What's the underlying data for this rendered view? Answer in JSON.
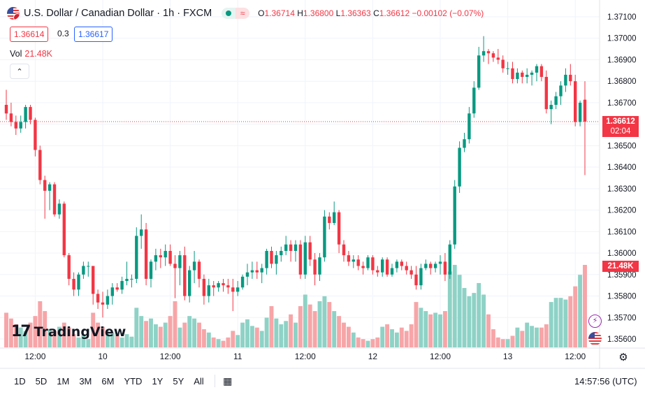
{
  "header": {
    "title": "U.S. Dollar / Canadian Dollar · 1h · FXCM",
    "ohlc": {
      "o_label": "O",
      "o": "1.36714",
      "h_label": "H",
      "h": "1.36800",
      "l_label": "L",
      "l": "1.36363",
      "c_label": "C",
      "c": "1.36612",
      "change": "−0.00102 (−0.07%)"
    },
    "bid": "1.36614",
    "spread": "0.3",
    "ask": "1.36617",
    "vol_label": "Vol",
    "vol_value": "21.48K",
    "collapse_icon": "chevron-up-icon"
  },
  "logo": {
    "mark": "17",
    "name": "TradingView"
  },
  "price_axis": {
    "current_price": "1.36612",
    "countdown": "02:04",
    "current_volume": "21.48K"
  },
  "toolbar": {
    "ranges": [
      "1D",
      "5D",
      "1M",
      "3M",
      "6M",
      "YTD",
      "1Y",
      "5Y",
      "All"
    ],
    "clock": "14:57:56 (UTC)",
    "calendar_icon": "calendar-range-icon",
    "settings_icon": "gear-icon"
  },
  "colors": {
    "up": "#089981",
    "down": "#f23645",
    "vol_up": "#8ed2c6",
    "vol_down": "#f7a5a8",
    "current_line": "#f23645"
  },
  "chart_data": {
    "type": "candlestick",
    "y_ticks": [
      "1.37100",
      "1.37000",
      "1.36900",
      "1.36800",
      "1.36700",
      "1.36600",
      "1.36500",
      "1.36400",
      "1.36300",
      "1.36200",
      "1.36100",
      "1.36000",
      "1.35900",
      "1.35800",
      "1.35700",
      "1.35600"
    ],
    "ylim": [
      1.3556,
      1.3714
    ],
    "x_ticks": [
      {
        "label": "12:00",
        "bar": 6
      },
      {
        "label": "10",
        "bar": 20
      },
      {
        "label": "12:00",
        "bar": 34
      },
      {
        "label": "11",
        "bar": 48
      },
      {
        "label": "12:00",
        "bar": 62
      },
      {
        "label": "12",
        "bar": 76
      },
      {
        "label": "12:00",
        "bar": 90
      },
      {
        "label": "13",
        "bar": 104
      },
      {
        "label": "12:00",
        "bar": 118
      }
    ],
    "bars": [
      {
        "o": 1.3669,
        "h": 1.3676,
        "l": 1.3662,
        "c": 1.3665,
        "v": 0.42
      },
      {
        "o": 1.3665,
        "h": 1.367,
        "l": 1.3659,
        "c": 1.3661,
        "v": 0.35
      },
      {
        "o": 1.3661,
        "h": 1.3664,
        "l": 1.3655,
        "c": 1.3658,
        "v": 0.28
      },
      {
        "o": 1.3658,
        "h": 1.3664,
        "l": 1.3656,
        "c": 1.3661,
        "v": 0.24
      },
      {
        "o": 1.3661,
        "h": 1.3669,
        "l": 1.3658,
        "c": 1.3668,
        "v": 0.2
      },
      {
        "o": 1.3668,
        "h": 1.3669,
        "l": 1.366,
        "c": 1.3662,
        "v": 0.3
      },
      {
        "o": 1.3662,
        "h": 1.3663,
        "l": 1.3645,
        "c": 1.3648,
        "v": 0.38
      },
      {
        "o": 1.3648,
        "h": 1.365,
        "l": 1.3632,
        "c": 1.3634,
        "v": 0.56
      },
      {
        "o": 1.3634,
        "h": 1.3636,
        "l": 1.3616,
        "c": 1.3629,
        "v": 0.44
      },
      {
        "o": 1.3629,
        "h": 1.3633,
        "l": 1.362,
        "c": 1.3632,
        "v": 0.22
      },
      {
        "o": 1.3632,
        "h": 1.3633,
        "l": 1.3617,
        "c": 1.3618,
        "v": 0.2
      },
      {
        "o": 1.3618,
        "h": 1.3625,
        "l": 1.3616,
        "c": 1.3623,
        "v": 0.25
      },
      {
        "o": 1.3623,
        "h": 1.3624,
        "l": 1.3598,
        "c": 1.3599,
        "v": 0.3
      },
      {
        "o": 1.3599,
        "h": 1.36,
        "l": 1.3585,
        "c": 1.3588,
        "v": 0.24
      },
      {
        "o": 1.3588,
        "h": 1.3591,
        "l": 1.358,
        "c": 1.3583,
        "v": 0.16
      },
      {
        "o": 1.3583,
        "h": 1.3591,
        "l": 1.358,
        "c": 1.359,
        "v": 0.12
      },
      {
        "o": 1.359,
        "h": 1.3596,
        "l": 1.3588,
        "c": 1.3594,
        "v": 0.15
      },
      {
        "o": 1.3594,
        "h": 1.3596,
        "l": 1.3589,
        "c": 1.3594,
        "v": 0.1
      },
      {
        "o": 1.3594,
        "h": 1.3594,
        "l": 1.3576,
        "c": 1.3581,
        "v": 0.42
      },
      {
        "o": 1.3581,
        "h": 1.3583,
        "l": 1.3574,
        "c": 1.3577,
        "v": 0.3
      },
      {
        "o": 1.3577,
        "h": 1.3582,
        "l": 1.357,
        "c": 1.3576,
        "v": 0.25
      },
      {
        "o": 1.3576,
        "h": 1.3583,
        "l": 1.3574,
        "c": 1.358,
        "v": 0.2
      },
      {
        "o": 1.358,
        "h": 1.3586,
        "l": 1.3576,
        "c": 1.3584,
        "v": 0.18
      },
      {
        "o": 1.3584,
        "h": 1.3586,
        "l": 1.3582,
        "c": 1.3583,
        "v": 0.15
      },
      {
        "o": 1.3583,
        "h": 1.3589,
        "l": 1.3581,
        "c": 1.3587,
        "v": 0.12
      },
      {
        "o": 1.3587,
        "h": 1.3596,
        "l": 1.3585,
        "c": 1.3588,
        "v": 0.16
      },
      {
        "o": 1.3588,
        "h": 1.359,
        "l": 1.3584,
        "c": 1.3588,
        "v": 0.13
      },
      {
        "o": 1.3588,
        "h": 1.3612,
        "l": 1.3586,
        "c": 1.3608,
        "v": 0.48
      },
      {
        "o": 1.3608,
        "h": 1.3618,
        "l": 1.3602,
        "c": 1.3611,
        "v": 0.38
      },
      {
        "o": 1.3611,
        "h": 1.3614,
        "l": 1.3585,
        "c": 1.3588,
        "v": 0.32
      },
      {
        "o": 1.3588,
        "h": 1.3597,
        "l": 1.3584,
        "c": 1.3596,
        "v": 0.35
      },
      {
        "o": 1.3596,
        "h": 1.3602,
        "l": 1.3592,
        "c": 1.3599,
        "v": 0.28
      },
      {
        "o": 1.3599,
        "h": 1.3602,
        "l": 1.3593,
        "c": 1.3598,
        "v": 0.25
      },
      {
        "o": 1.3598,
        "h": 1.3604,
        "l": 1.3594,
        "c": 1.3601,
        "v": 0.3
      },
      {
        "o": 1.3601,
        "h": 1.3604,
        "l": 1.3594,
        "c": 1.3595,
        "v": 0.38
      },
      {
        "o": 1.3595,
        "h": 1.3599,
        "l": 1.3579,
        "c": 1.3593,
        "v": 0.56
      },
      {
        "o": 1.3593,
        "h": 1.3601,
        "l": 1.3585,
        "c": 1.3599,
        "v": 0.24
      },
      {
        "o": 1.3599,
        "h": 1.3603,
        "l": 1.3578,
        "c": 1.358,
        "v": 0.3
      },
      {
        "o": 1.358,
        "h": 1.3594,
        "l": 1.3577,
        "c": 1.3592,
        "v": 0.38
      },
      {
        "o": 1.3592,
        "h": 1.3601,
        "l": 1.3586,
        "c": 1.3596,
        "v": 0.35
      },
      {
        "o": 1.3596,
        "h": 1.3597,
        "l": 1.3584,
        "c": 1.3588,
        "v": 0.3
      },
      {
        "o": 1.3588,
        "h": 1.359,
        "l": 1.3576,
        "c": 1.358,
        "v": 0.22
      },
      {
        "o": 1.358,
        "h": 1.3588,
        "l": 1.3577,
        "c": 1.3585,
        "v": 0.18
      },
      {
        "o": 1.3585,
        "h": 1.3587,
        "l": 1.358,
        "c": 1.3584,
        "v": 0.12
      },
      {
        "o": 1.3584,
        "h": 1.3587,
        "l": 1.3582,
        "c": 1.3586,
        "v": 0.1
      },
      {
        "o": 1.3586,
        "h": 1.3588,
        "l": 1.3582,
        "c": 1.3585,
        "v": 0.08
      },
      {
        "o": 1.3585,
        "h": 1.3588,
        "l": 1.3581,
        "c": 1.3584,
        "v": 0.12
      },
      {
        "o": 1.3584,
        "h": 1.3588,
        "l": 1.3573,
        "c": 1.3582,
        "v": 0.2
      },
      {
        "o": 1.3582,
        "h": 1.3587,
        "l": 1.358,
        "c": 1.3584,
        "v": 0.15
      },
      {
        "o": 1.3584,
        "h": 1.359,
        "l": 1.3583,
        "c": 1.3589,
        "v": 0.3
      },
      {
        "o": 1.3589,
        "h": 1.3595,
        "l": 1.3585,
        "c": 1.3591,
        "v": 0.34
      },
      {
        "o": 1.3591,
        "h": 1.3596,
        "l": 1.3588,
        "c": 1.3592,
        "v": 0.26
      },
      {
        "o": 1.3592,
        "h": 1.3596,
        "l": 1.3588,
        "c": 1.3591,
        "v": 0.24
      },
      {
        "o": 1.3591,
        "h": 1.3595,
        "l": 1.3586,
        "c": 1.3593,
        "v": 0.2
      },
      {
        "o": 1.3593,
        "h": 1.3602,
        "l": 1.359,
        "c": 1.3601,
        "v": 0.36
      },
      {
        "o": 1.3601,
        "h": 1.3603,
        "l": 1.3593,
        "c": 1.3595,
        "v": 0.5
      },
      {
        "o": 1.3595,
        "h": 1.3601,
        "l": 1.359,
        "c": 1.3599,
        "v": 0.35
      },
      {
        "o": 1.3599,
        "h": 1.3603,
        "l": 1.3596,
        "c": 1.3601,
        "v": 0.28
      },
      {
        "o": 1.3601,
        "h": 1.3608,
        "l": 1.3599,
        "c": 1.3604,
        "v": 0.32
      },
      {
        "o": 1.3604,
        "h": 1.3606,
        "l": 1.3596,
        "c": 1.3601,
        "v": 0.4
      },
      {
        "o": 1.3601,
        "h": 1.3606,
        "l": 1.3596,
        "c": 1.3604,
        "v": 0.3
      },
      {
        "o": 1.3604,
        "h": 1.3606,
        "l": 1.3588,
        "c": 1.359,
        "v": 0.5
      },
      {
        "o": 1.359,
        "h": 1.3608,
        "l": 1.3588,
        "c": 1.3605,
        "v": 0.64
      },
      {
        "o": 1.3605,
        "h": 1.3608,
        "l": 1.3594,
        "c": 1.3597,
        "v": 0.52
      },
      {
        "o": 1.3597,
        "h": 1.36,
        "l": 1.3585,
        "c": 1.359,
        "v": 0.44
      },
      {
        "o": 1.359,
        "h": 1.36,
        "l": 1.3587,
        "c": 1.3598,
        "v": 0.56
      },
      {
        "o": 1.3598,
        "h": 1.362,
        "l": 1.3596,
        "c": 1.3617,
        "v": 0.62
      },
      {
        "o": 1.3617,
        "h": 1.3619,
        "l": 1.3611,
        "c": 1.3614,
        "v": 0.55
      },
      {
        "o": 1.3614,
        "h": 1.3624,
        "l": 1.3613,
        "c": 1.3619,
        "v": 0.44
      },
      {
        "o": 1.3619,
        "h": 1.362,
        "l": 1.36,
        "c": 1.3604,
        "v": 0.38
      },
      {
        "o": 1.3604,
        "h": 1.3606,
        "l": 1.3596,
        "c": 1.3599,
        "v": 0.3
      },
      {
        "o": 1.3599,
        "h": 1.3601,
        "l": 1.3594,
        "c": 1.3596,
        "v": 0.25
      },
      {
        "o": 1.3596,
        "h": 1.3599,
        "l": 1.3593,
        "c": 1.3597,
        "v": 0.18
      },
      {
        "o": 1.3597,
        "h": 1.3599,
        "l": 1.3592,
        "c": 1.3594,
        "v": 0.12
      },
      {
        "o": 1.3594,
        "h": 1.3596,
        "l": 1.359,
        "c": 1.3593,
        "v": 0.1
      },
      {
        "o": 1.3593,
        "h": 1.3599,
        "l": 1.3592,
        "c": 1.3598,
        "v": 0.08
      },
      {
        "o": 1.3598,
        "h": 1.3599,
        "l": 1.359,
        "c": 1.3592,
        "v": 0.1
      },
      {
        "o": 1.3592,
        "h": 1.3594,
        "l": 1.3589,
        "c": 1.3591,
        "v": 0.12
      },
      {
        "o": 1.3591,
        "h": 1.3598,
        "l": 1.3589,
        "c": 1.3597,
        "v": 0.25
      },
      {
        "o": 1.3597,
        "h": 1.3598,
        "l": 1.3589,
        "c": 1.359,
        "v": 0.28
      },
      {
        "o": 1.359,
        "h": 1.3595,
        "l": 1.3589,
        "c": 1.3593,
        "v": 0.22
      },
      {
        "o": 1.3593,
        "h": 1.3597,
        "l": 1.3591,
        "c": 1.3596,
        "v": 0.18
      },
      {
        "o": 1.3596,
        "h": 1.3597,
        "l": 1.3592,
        "c": 1.3594,
        "v": 0.24
      },
      {
        "o": 1.3594,
        "h": 1.3596,
        "l": 1.359,
        "c": 1.3592,
        "v": 0.2
      },
      {
        "o": 1.3592,
        "h": 1.3594,
        "l": 1.3588,
        "c": 1.359,
        "v": 0.28
      },
      {
        "o": 1.359,
        "h": 1.3594,
        "l": 1.3583,
        "c": 1.3585,
        "v": 0.55
      },
      {
        "o": 1.3585,
        "h": 1.3595,
        "l": 1.3583,
        "c": 1.3593,
        "v": 0.48
      },
      {
        "o": 1.3593,
        "h": 1.3597,
        "l": 1.3592,
        "c": 1.3595,
        "v": 0.44
      },
      {
        "o": 1.3595,
        "h": 1.3596,
        "l": 1.359,
        "c": 1.3593,
        "v": 0.4
      },
      {
        "o": 1.3593,
        "h": 1.3596,
        "l": 1.3591,
        "c": 1.3595,
        "v": 0.42
      },
      {
        "o": 1.3595,
        "h": 1.3599,
        "l": 1.359,
        "c": 1.3596,
        "v": 0.4
      },
      {
        "o": 1.3596,
        "h": 1.36,
        "l": 1.3587,
        "c": 1.359,
        "v": 0.44
      },
      {
        "o": 1.359,
        "h": 1.3606,
        "l": 1.3588,
        "c": 1.3604,
        "v": 0.92
      },
      {
        "o": 1.3604,
        "h": 1.3634,
        "l": 1.3602,
        "c": 1.3631,
        "v": 1.0
      },
      {
        "o": 1.3631,
        "h": 1.3652,
        "l": 1.3628,
        "c": 1.3649,
        "v": 0.88
      },
      {
        "o": 1.3649,
        "h": 1.3656,
        "l": 1.3647,
        "c": 1.3653,
        "v": 0.72
      },
      {
        "o": 1.3653,
        "h": 1.3668,
        "l": 1.3651,
        "c": 1.3665,
        "v": 0.62
      },
      {
        "o": 1.3665,
        "h": 1.368,
        "l": 1.3663,
        "c": 1.3677,
        "v": 0.66
      },
      {
        "o": 1.3677,
        "h": 1.3696,
        "l": 1.3676,
        "c": 1.3692,
        "v": 0.78
      },
      {
        "o": 1.3692,
        "h": 1.3701,
        "l": 1.3689,
        "c": 1.3694,
        "v": 0.64
      },
      {
        "o": 1.3694,
        "h": 1.3695,
        "l": 1.3688,
        "c": 1.3693,
        "v": 0.4
      },
      {
        "o": 1.3693,
        "h": 1.3694,
        "l": 1.3689,
        "c": 1.3691,
        "v": 0.22
      },
      {
        "o": 1.3691,
        "h": 1.3695,
        "l": 1.3688,
        "c": 1.369,
        "v": 0.12
      },
      {
        "o": 1.369,
        "h": 1.3692,
        "l": 1.3684,
        "c": 1.3686,
        "v": 0.1
      },
      {
        "o": 1.3686,
        "h": 1.3689,
        "l": 1.3683,
        "c": 1.3686,
        "v": 0.1
      },
      {
        "o": 1.3686,
        "h": 1.3689,
        "l": 1.3679,
        "c": 1.3681,
        "v": 0.14
      },
      {
        "o": 1.3681,
        "h": 1.3686,
        "l": 1.3679,
        "c": 1.3684,
        "v": 0.24
      },
      {
        "o": 1.3684,
        "h": 1.3685,
        "l": 1.3679,
        "c": 1.3682,
        "v": 0.2
      },
      {
        "o": 1.3682,
        "h": 1.3686,
        "l": 1.3679,
        "c": 1.3683,
        "v": 0.3
      },
      {
        "o": 1.3683,
        "h": 1.3685,
        "l": 1.3678,
        "c": 1.3684,
        "v": 0.26
      },
      {
        "o": 1.3684,
        "h": 1.3688,
        "l": 1.368,
        "c": 1.3687,
        "v": 0.24
      },
      {
        "o": 1.3687,
        "h": 1.3688,
        "l": 1.368,
        "c": 1.3682,
        "v": 0.24
      },
      {
        "o": 1.3682,
        "h": 1.3685,
        "l": 1.3665,
        "c": 1.3667,
        "v": 0.28
      },
      {
        "o": 1.3667,
        "h": 1.3671,
        "l": 1.366,
        "c": 1.3669,
        "v": 0.55
      },
      {
        "o": 1.3669,
        "h": 1.3675,
        "l": 1.3667,
        "c": 1.3673,
        "v": 0.6
      },
      {
        "o": 1.3673,
        "h": 1.368,
        "l": 1.3669,
        "c": 1.3678,
        "v": 0.6
      },
      {
        "o": 1.3678,
        "h": 1.3686,
        "l": 1.3675,
        "c": 1.3683,
        "v": 0.58
      },
      {
        "o": 1.3683,
        "h": 1.3688,
        "l": 1.3678,
        "c": 1.368,
        "v": 0.62
      },
      {
        "o": 1.368,
        "h": 1.3683,
        "l": 1.3659,
        "c": 1.3661,
        "v": 0.74
      },
      {
        "o": 1.3661,
        "h": 1.3671,
        "l": 1.3659,
        "c": 1.367,
        "v": 0.88
      },
      {
        "o": 1.36714,
        "h": 1.368,
        "l": 1.36363,
        "c": 1.36612,
        "v": 1.0
      }
    ]
  }
}
